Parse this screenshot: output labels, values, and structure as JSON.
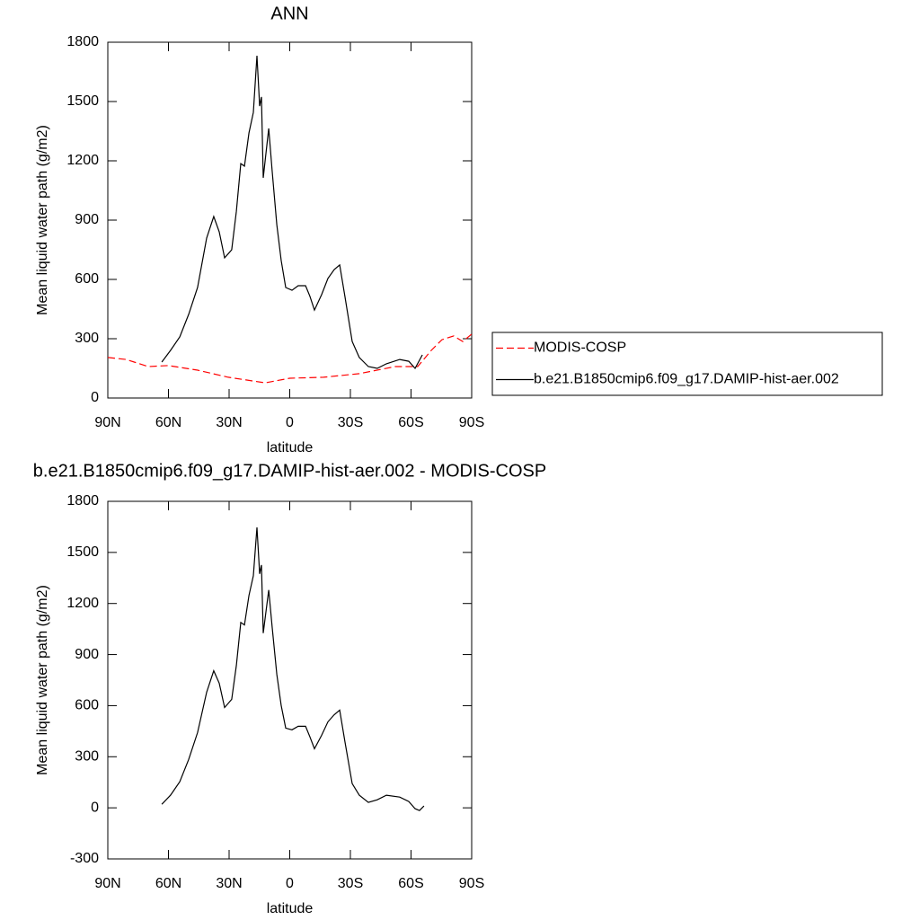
{
  "chart_data": [
    {
      "type": "line",
      "title": "ANN",
      "xlabel": "latitude",
      "ylabel": "Mean liquid water path (g/m2)",
      "xlim": [
        90,
        -90
      ],
      "xticks": [
        {
          "value": 90,
          "label": "90N"
        },
        {
          "value": 60,
          "label": "60N"
        },
        {
          "value": 30,
          "label": "30N"
        },
        0,
        {
          "value": -30,
          "label": "30S"
        },
        {
          "value": -60,
          "label": "60S"
        },
        {
          "value": -90,
          "label": "90S"
        }
      ],
      "ylim": [
        0,
        1800
      ],
      "yticks": [
        0,
        300,
        600,
        900,
        1200,
        1500,
        1800
      ],
      "series": [
        {
          "name": "MODIS-COSP",
          "color": "#ff0000",
          "dash": true,
          "x": [
            90,
            81,
            70,
            60,
            45.6,
            30.4,
            12.2,
            0,
            -16.7,
            -34.4,
            -52.2,
            -63.3,
            -70,
            -75.3,
            -81.1,
            -85.6,
            -90
          ],
          "values": [
            205,
            195,
            159,
            164,
            141,
            105,
            77,
            100,
            105,
            123,
            159,
            159,
            241,
            295,
            314,
            286,
            323
          ]
        },
        {
          "name": "b.e21.B1850cmip6.f09_g17.DAMIP-hist-aer.002",
          "color": "#000000",
          "dash": false,
          "x": [
            63.3,
            59,
            54.4,
            50,
            45.6,
            41.1,
            37.6,
            34.9,
            32.2,
            28.7,
            26.4,
            24.2,
            22.4,
            20.2,
            18,
            16.2,
            14.9,
            14,
            13.1,
            10.4,
            8.7,
            6.4,
            4.2,
            2,
            -1.1,
            -4.2,
            -7.8,
            -10,
            -12.2,
            -15.8,
            -18.9,
            -22,
            -24.7,
            -27.3,
            -30.9,
            -34.4,
            -38.9,
            -43.3,
            -47.8,
            -54.4,
            -58.9,
            -62,
            -65.6
          ],
          "values": [
            182,
            241,
            309,
            423,
            559,
            809,
            918,
            841,
            709,
            750,
            945,
            1186,
            1173,
            1341,
            1445,
            1732,
            1477,
            1523,
            1114,
            1364,
            1150,
            877,
            695,
            559,
            545,
            568,
            568,
            514,
            445,
            523,
            605,
            650,
            673,
            514,
            286,
            205,
            159,
            150,
            173,
            195,
            186,
            150,
            218
          ]
        }
      ]
    },
    {
      "type": "line",
      "title": "b.e21.B1850cmip6.f09_g17.DAMIP-hist-aer.002 - MODIS-COSP",
      "xlabel": "latitude",
      "ylabel": "Mean liquid water path (g/m2)",
      "xlim": [
        90,
        -90
      ],
      "xticks": [
        {
          "value": 90,
          "label": "90N"
        },
        {
          "value": 60,
          "label": "60N"
        },
        {
          "value": 30,
          "label": "30N"
        },
        0,
        {
          "value": -30,
          "label": "30S"
        },
        {
          "value": -60,
          "label": "60S"
        },
        {
          "value": -90,
          "label": "90S"
        }
      ],
      "ylim": [
        -300,
        1800
      ],
      "yticks": [
        -300,
        0,
        300,
        600,
        900,
        1200,
        1500,
        1800
      ],
      "series": [
        {
          "color": "#000000",
          "dash": false,
          "x": [
            63.3,
            59,
            54.4,
            50,
            45.6,
            41.1,
            37.6,
            34.9,
            32.2,
            28.7,
            26.4,
            24.2,
            22.4,
            20.2,
            18,
            16.2,
            14.9,
            14,
            13.1,
            10.4,
            8.7,
            6.4,
            4.2,
            2,
            -1.1,
            -4.2,
            -7.8,
            -10,
            -12.2,
            -15.8,
            -18.9,
            -22,
            -24.7,
            -27.3,
            -30.9,
            -34.4,
            -38.9,
            -43.3,
            -47.8,
            -54.4,
            -58.9,
            -62,
            -64.2,
            -66.4
          ],
          "values": [
            21,
            74,
            153,
            284,
            442,
            679,
            805,
            732,
            589,
            637,
            837,
            1089,
            1074,
            1247,
            1363,
            1647,
            1374,
            1426,
            1026,
            1279,
            1063,
            784,
            600,
            468,
            458,
            479,
            479,
            416,
            347,
            426,
            505,
            547,
            574,
            389,
            142,
            74,
            32,
            47,
            74,
            63,
            37,
            -5,
            -16,
            11
          ]
        }
      ]
    }
  ]
}
